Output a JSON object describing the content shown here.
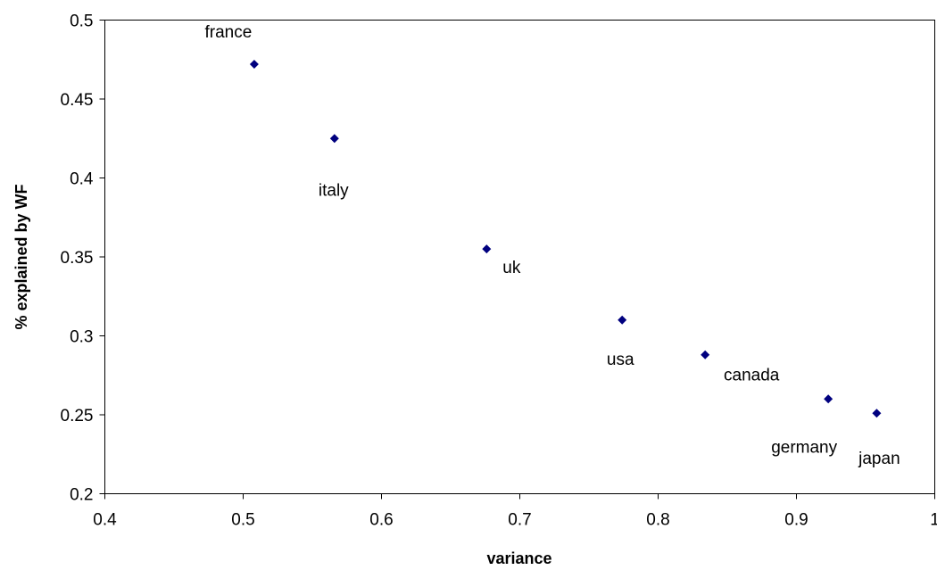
{
  "chart_data": {
    "type": "scatter",
    "title": "",
    "xlabel": "variance",
    "ylabel": "% explained by WF",
    "xlim": [
      0.4,
      1
    ],
    "ylim": [
      0.2,
      0.5
    ],
    "x_ticks": [
      "0.4",
      "0.5",
      "0.6",
      "0.7",
      "0.8",
      "0.9",
      "1"
    ],
    "y_ticks": [
      "0.2",
      "0.25",
      "0.3",
      "0.35",
      "0.4",
      "0.45",
      "0.5"
    ],
    "grid": false,
    "legend": "none",
    "marker_color": "#00007f",
    "marker": "diamond",
    "points": [
      {
        "label": "france",
        "x": 0.508,
        "y": 0.472
      },
      {
        "label": "italy",
        "x": 0.566,
        "y": 0.425
      },
      {
        "label": "uk",
        "x": 0.676,
        "y": 0.355
      },
      {
        "label": "usa",
        "x": 0.774,
        "y": 0.31
      },
      {
        "label": "canada",
        "x": 0.834,
        "y": 0.288
      },
      {
        "label": "germany",
        "x": 0.923,
        "y": 0.26
      },
      {
        "label": "japan",
        "x": 0.958,
        "y": 0.251
      }
    ]
  }
}
